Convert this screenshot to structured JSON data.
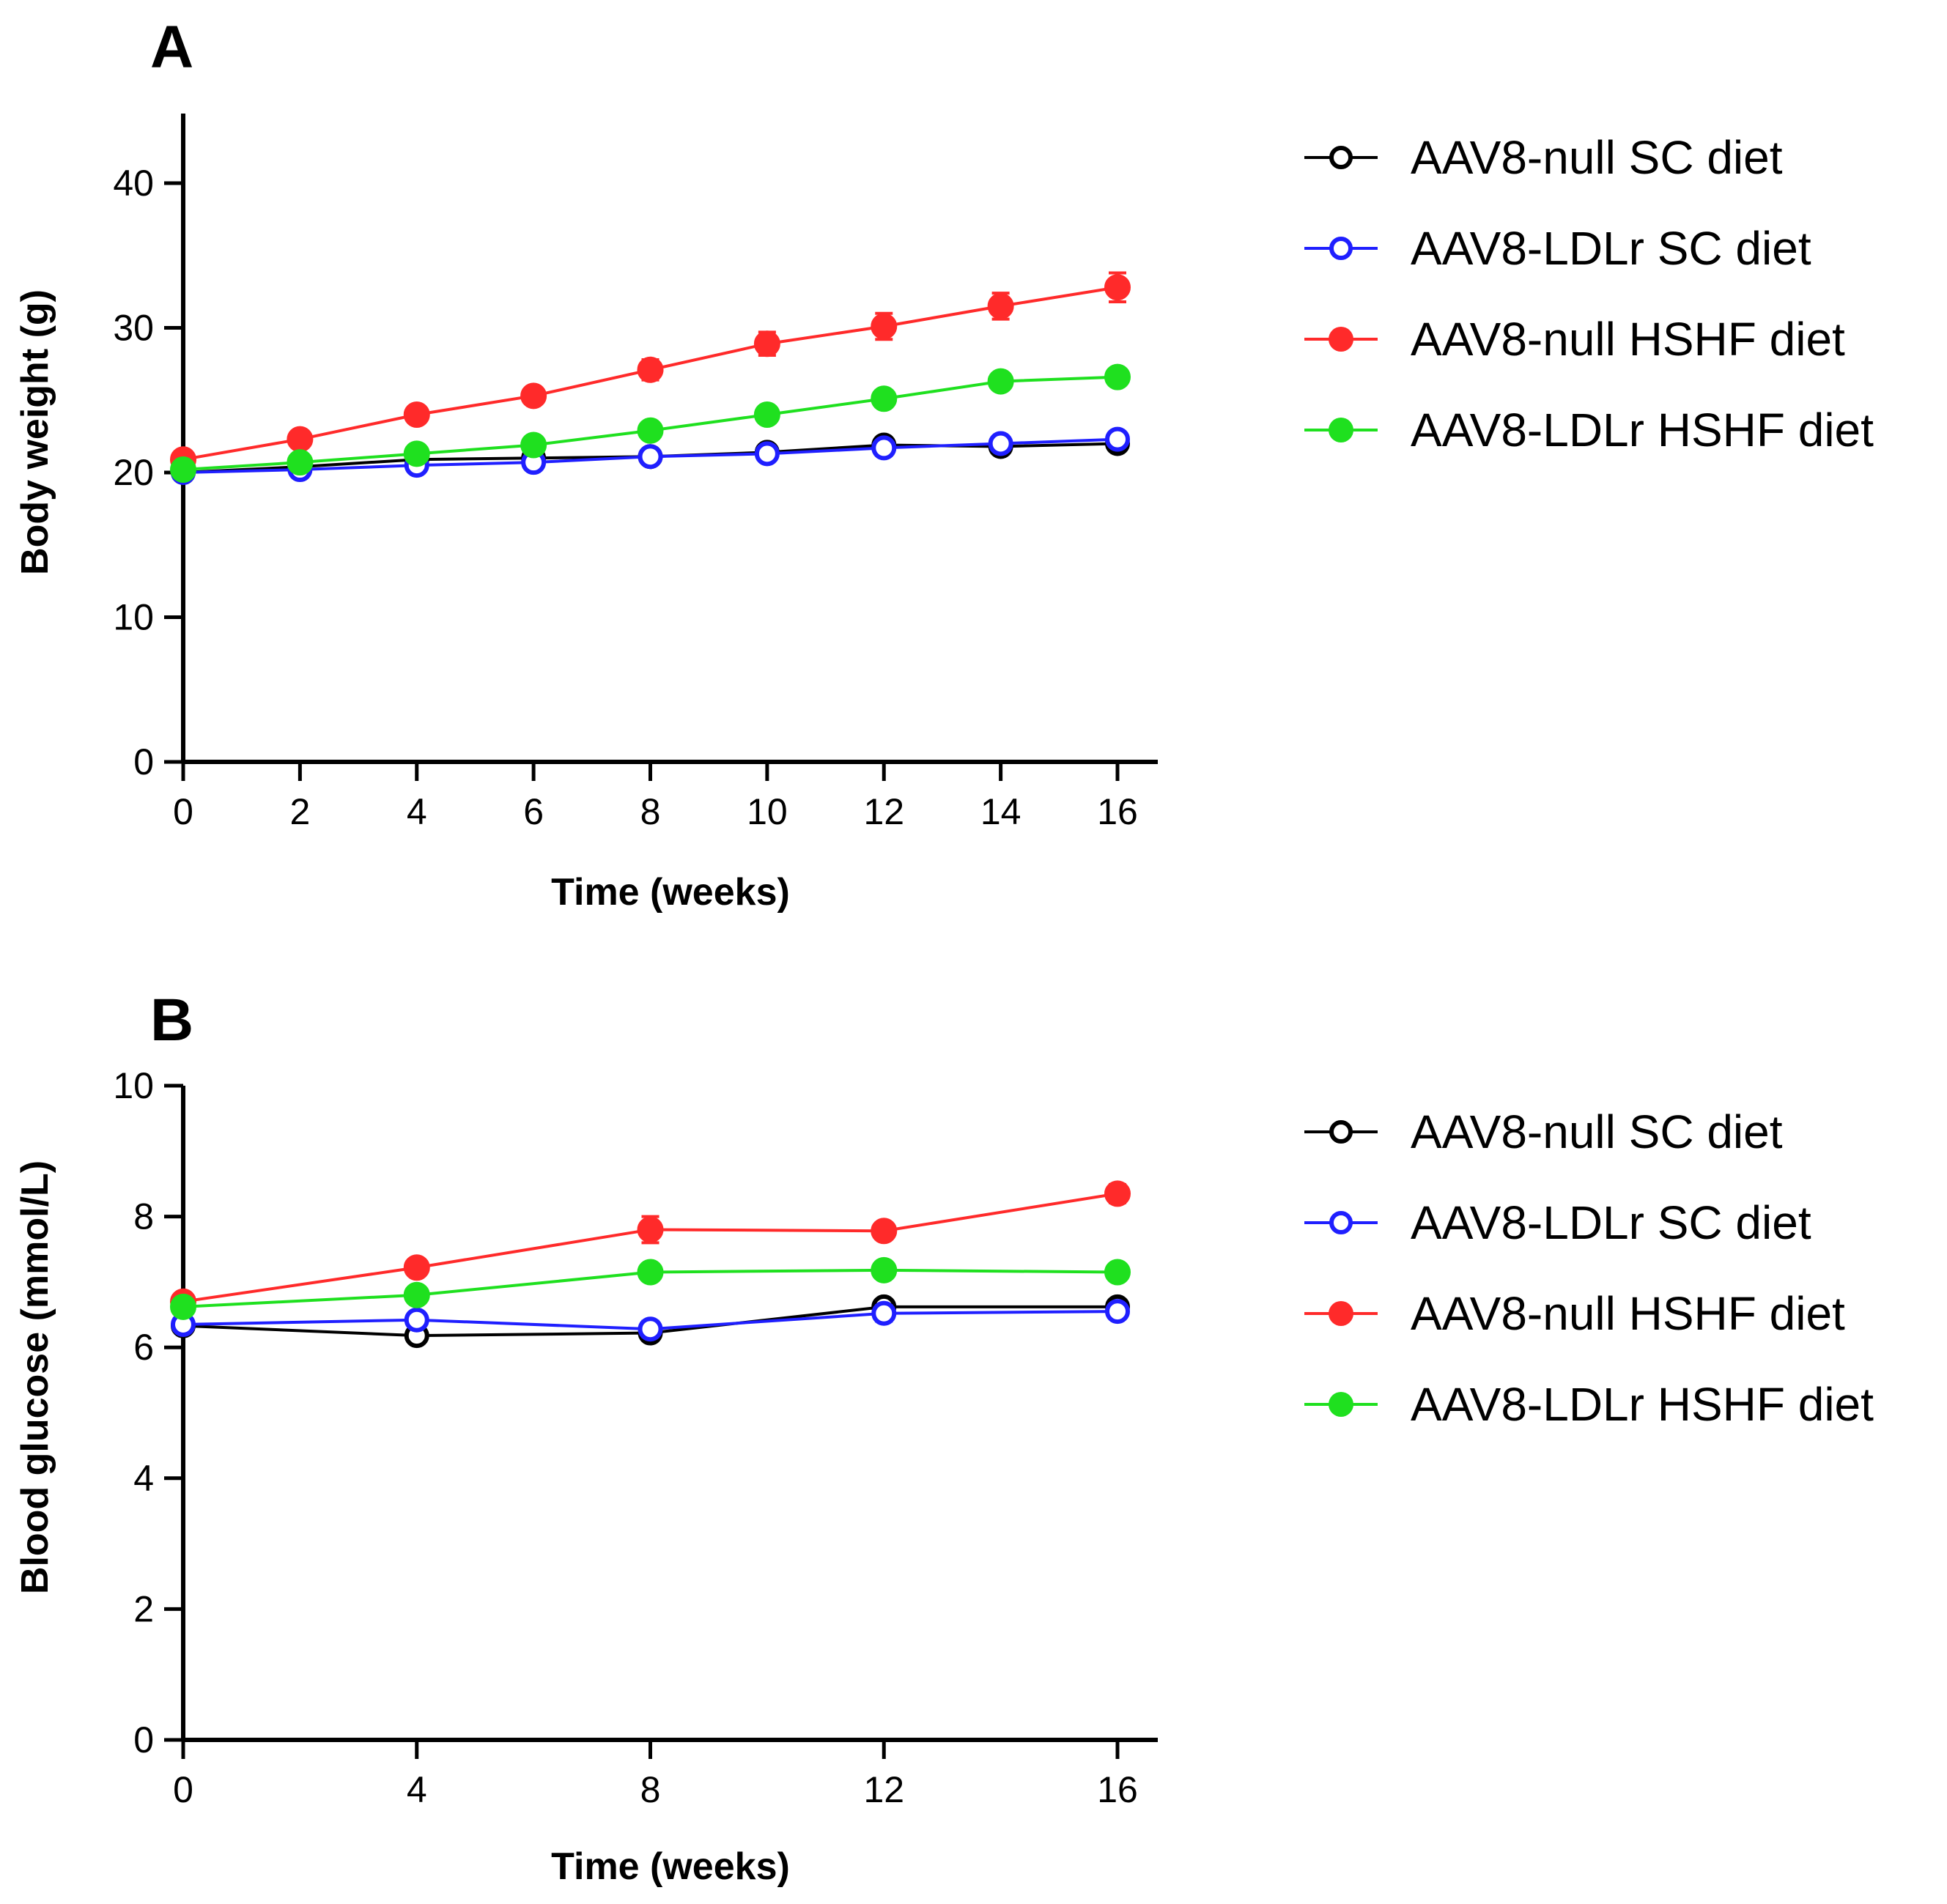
{
  "chart_data": [
    {
      "panel": "A",
      "type": "line",
      "xlabel": "Time (weeks)",
      "ylabel": "Body weight (g)",
      "xlim": [
        0,
        16
      ],
      "ylim": [
        0,
        45
      ],
      "xticks": [
        "0",
        "2",
        "4",
        "6",
        "8",
        "10",
        "12",
        "14",
        "16"
      ],
      "yticks": [
        "0",
        "10",
        "20",
        "30",
        "40"
      ],
      "x": [
        0,
        2,
        4,
        6,
        8,
        10,
        12,
        14,
        16
      ],
      "series": [
        {
          "name": "AAV8-null SC diet",
          "color": "#000000",
          "marker": "open-circle",
          "values": [
            20.0,
            20.4,
            20.9,
            21.0,
            21.1,
            21.4,
            21.9,
            21.8,
            22.0
          ],
          "errors": [
            0.3,
            0.3,
            0.3,
            0.3,
            0.3,
            0.3,
            0.3,
            0.4,
            0.4
          ]
        },
        {
          "name": "AAV8-LDLr SC diet",
          "color": "#1f1fff",
          "marker": "open-circle",
          "values": [
            20.0,
            20.2,
            20.5,
            20.7,
            21.1,
            21.3,
            21.7,
            22.0,
            22.3
          ],
          "errors": [
            0.3,
            0.3,
            0.3,
            0.3,
            0.3,
            0.3,
            0.3,
            0.4,
            0.4
          ]
        },
        {
          "name": "AAV8-null HSHF diet",
          "color": "#ff2a2a",
          "marker": "filled-circle",
          "values": [
            20.9,
            22.3,
            24.0,
            25.3,
            27.1,
            28.9,
            30.1,
            31.5,
            32.8
          ],
          "errors": [
            0.3,
            0.3,
            0.4,
            0.5,
            0.7,
            0.8,
            0.9,
            0.9,
            1.0
          ]
        },
        {
          "name": "AAV8-LDLr HSHF diet",
          "color": "#1fe01f",
          "marker": "filled-circle",
          "values": [
            20.2,
            20.7,
            21.3,
            21.9,
            22.9,
            24.0,
            25.1,
            26.3,
            26.6
          ],
          "errors": [
            0.3,
            0.3,
            0.3,
            0.3,
            0.4,
            0.4,
            0.4,
            0.4,
            0.4
          ]
        }
      ]
    },
    {
      "panel": "B",
      "type": "line",
      "xlabel": "Time (weeks)",
      "ylabel": "Blood glucose (mmol/L)",
      "xlim": [
        0,
        16
      ],
      "ylim": [
        0,
        10
      ],
      "xticks": [
        "0",
        "4",
        "8",
        "12",
        "16"
      ],
      "yticks": [
        "0",
        "2",
        "4",
        "6",
        "8",
        "10"
      ],
      "x": [
        0,
        4,
        8,
        12,
        16
      ],
      "series": [
        {
          "name": "AAV8-null SC diet",
          "color": "#000000",
          "marker": "open-circle",
          "values": [
            6.33,
            6.18,
            6.22,
            6.62,
            6.62
          ],
          "errors": [
            0.06,
            0.06,
            0.06,
            0.08,
            0.06
          ]
        },
        {
          "name": "AAV8-LDLr SC diet",
          "color": "#1f1fff",
          "marker": "open-circle",
          "values": [
            6.35,
            6.42,
            6.28,
            6.52,
            6.55
          ],
          "errors": [
            0.06,
            0.08,
            0.12,
            0.12,
            0.08
          ]
        },
        {
          "name": "AAV8-null HSHF diet",
          "color": "#ff2a2a",
          "marker": "filled-circle",
          "values": [
            6.7,
            7.22,
            7.8,
            7.78,
            8.35
          ],
          "errors": [
            0.1,
            0.1,
            0.2,
            0.1,
            0.14
          ]
        },
        {
          "name": "AAV8-LDLr HSHF diet",
          "color": "#1fe01f",
          "marker": "filled-circle",
          "values": [
            6.62,
            6.8,
            7.15,
            7.18,
            7.15
          ],
          "errors": [
            0.06,
            0.08,
            0.08,
            0.08,
            0.08
          ]
        }
      ]
    }
  ]
}
